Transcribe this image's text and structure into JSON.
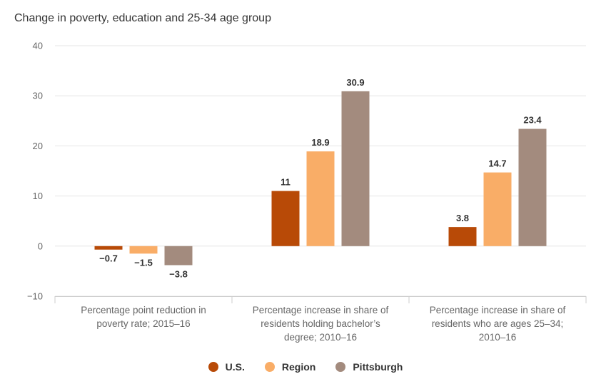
{
  "chart_data": {
    "type": "bar",
    "title": "Change in poverty, education and 25-34 age group",
    "categories": [
      [
        "Percentage point reduction in",
        "poverty rate; 2015–16"
      ],
      [
        "Percentage increase in share of",
        "residents holding bachelor’s",
        "degree; 2010–16"
      ],
      [
        "Percentage increase in share of",
        "residents who are ages 25–34;",
        "2010–16"
      ]
    ],
    "series": [
      {
        "name": "U.S.",
        "color": "#b84a07",
        "values": [
          -0.7,
          11,
          3.8
        ],
        "labels": [
          "−0.7",
          "11",
          "3.8"
        ]
      },
      {
        "name": "Region",
        "color": "#f9ad67",
        "values": [
          -1.5,
          18.9,
          14.7
        ],
        "labels": [
          "−1.5",
          "18.9",
          "14.7"
        ]
      },
      {
        "name": "Pittsburgh",
        "color": "#a38b7e",
        "values": [
          -3.8,
          30.9,
          23.4
        ],
        "labels": [
          "−3.8",
          "30.9",
          "23.4"
        ]
      }
    ],
    "ylim": [
      -10,
      40
    ],
    "yticks": [
      40,
      30,
      20,
      10,
      0,
      -10
    ],
    "ytick_labels": [
      "40",
      "30",
      "20",
      "10",
      "0",
      "−10"
    ],
    "xlabel": "",
    "ylabel": "",
    "grid": true,
    "legend_position": "bottom-center"
  }
}
